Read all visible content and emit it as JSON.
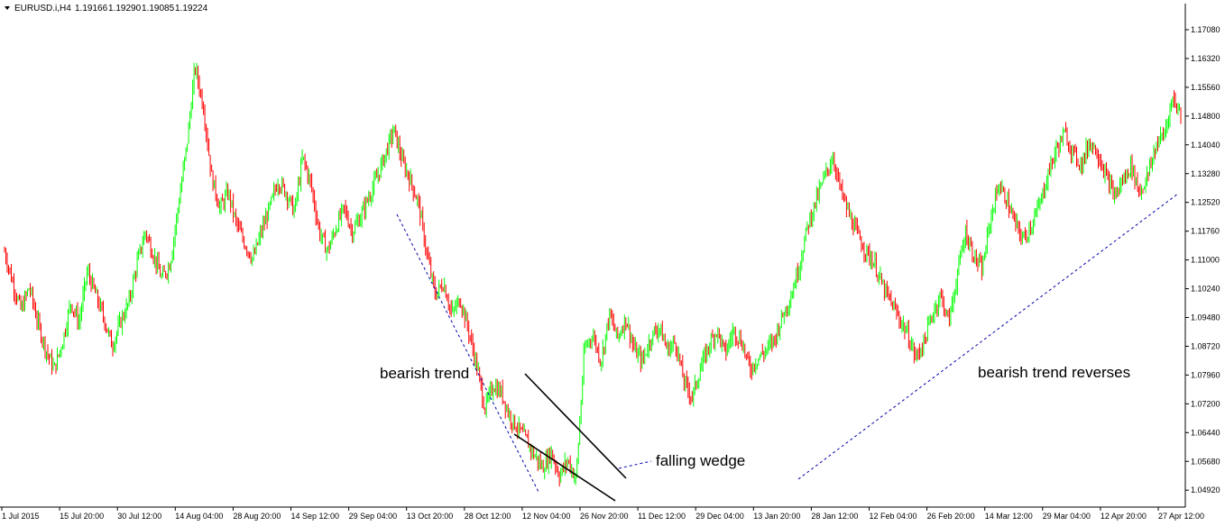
{
  "header": {
    "symbol": "EURUSD.i,H4",
    "open": "1.19166",
    "high": "1.19290",
    "low": "1.19085",
    "close": "1.19224"
  },
  "chart_data": {
    "type": "candlestick",
    "y_tick_labels": [
      "1.17080",
      "1.16320",
      "1.15560",
      "1.14800",
      "1.14040",
      "1.13280",
      "1.12520",
      "1.11760",
      "1.11000",
      "1.10240",
      "1.09480",
      "1.08720",
      "1.07960",
      "1.07200",
      "1.06440",
      "1.05680",
      "1.04920"
    ],
    "x_tick_labels": [
      "1 Jul 2015",
      "15 Jul 20:00",
      "30 Jul 12:00",
      "14 Aug 04:00",
      "28 Aug 20:00",
      "14 Sep 12:00",
      "29 Sep 04:00",
      "13 Oct 20:00",
      "28 Oct 12:00",
      "12 Nov 04:00",
      "26 Nov 20:00",
      "11 Dec 12:00",
      "29 Dec 04:00",
      "13 Jan 20:00",
      "28 Jan 12:00",
      "12 Feb 04:00",
      "26 Feb 20:00",
      "14 Mar 12:00",
      "29 Mar 04:00",
      "12 Apr 20:00",
      "27 Apr 12:00"
    ],
    "ylim": [
      1.048,
      1.176
    ],
    "price_path": [
      [
        0,
        1.113
      ],
      [
        1,
        1.105
      ],
      [
        2,
        1.098
      ],
      [
        3,
        1.104
      ],
      [
        4,
        1.095
      ],
      [
        5,
        1.088
      ],
      [
        6,
        1.083
      ],
      [
        7,
        1.09
      ],
      [
        8,
        1.1
      ],
      [
        9,
        1.095
      ],
      [
        10,
        1.108
      ],
      [
        11,
        1.102
      ],
      [
        12,
        1.096
      ],
      [
        13,
        1.089
      ],
      [
        14,
        1.095
      ],
      [
        15,
        1.1
      ],
      [
        16,
        1.11
      ],
      [
        17,
        1.118
      ],
      [
        18,
        1.112
      ],
      [
        19,
        1.106
      ],
      [
        20,
        1.11
      ],
      [
        21,
        1.125
      ],
      [
        22,
        1.14
      ],
      [
        23,
        1.16
      ],
      [
        24,
        1.15
      ],
      [
        25,
        1.132
      ],
      [
        26,
        1.124
      ],
      [
        27,
        1.128
      ],
      [
        28,
        1.12
      ],
      [
        29,
        1.115
      ],
      [
        30,
        1.111
      ],
      [
        31,
        1.118
      ],
      [
        32,
        1.124
      ],
      [
        33,
        1.131
      ],
      [
        34,
        1.128
      ],
      [
        35,
        1.123
      ],
      [
        36,
        1.137
      ],
      [
        37,
        1.13
      ],
      [
        38,
        1.118
      ],
      [
        39,
        1.113
      ],
      [
        40,
        1.119
      ],
      [
        41,
        1.124
      ],
      [
        42,
        1.118
      ],
      [
        43,
        1.122
      ],
      [
        44,
        1.127
      ],
      [
        45,
        1.132
      ],
      [
        46,
        1.138
      ],
      [
        47,
        1.144
      ],
      [
        48,
        1.136
      ],
      [
        49,
        1.131
      ],
      [
        50,
        1.125
      ],
      [
        51,
        1.112
      ],
      [
        52,
        1.102
      ],
      [
        53,
        1.105
      ],
      [
        54,
        1.097
      ],
      [
        55,
        1.101
      ],
      [
        56,
        1.093
      ],
      [
        57,
        1.084
      ],
      [
        58,
        1.073
      ],
      [
        59,
        1.079
      ],
      [
        60,
        1.077
      ],
      [
        61,
        1.071
      ],
      [
        62,
        1.068
      ],
      [
        63,
        1.065
      ],
      [
        64,
        1.061
      ],
      [
        65,
        1.058
      ],
      [
        66,
        1.062
      ],
      [
        67,
        1.056
      ],
      [
        68,
        1.06
      ],
      [
        69,
        1.055
      ],
      [
        70,
        1.088
      ],
      [
        71,
        1.092
      ],
      [
        72,
        1.085
      ],
      [
        73,
        1.097
      ],
      [
        74,
        1.091
      ],
      [
        75,
        1.096
      ],
      [
        76,
        1.088
      ],
      [
        77,
        1.085
      ],
      [
        78,
        1.091
      ],
      [
        79,
        1.094
      ],
      [
        80,
        1.088
      ],
      [
        81,
        1.09
      ],
      [
        82,
        1.08
      ],
      [
        83,
        1.076
      ],
      [
        84,
        1.083
      ],
      [
        85,
        1.089
      ],
      [
        86,
        1.093
      ],
      [
        87,
        1.087
      ],
      [
        88,
        1.093
      ],
      [
        89,
        1.09
      ],
      [
        90,
        1.083
      ],
      [
        91,
        1.086
      ],
      [
        92,
        1.088
      ],
      [
        93,
        1.091
      ],
      [
        94,
        1.097
      ],
      [
        95,
        1.102
      ],
      [
        96,
        1.11
      ],
      [
        97,
        1.12
      ],
      [
        98,
        1.126
      ],
      [
        99,
        1.132
      ],
      [
        100,
        1.137
      ],
      [
        101,
        1.128
      ],
      [
        102,
        1.122
      ],
      [
        103,
        1.117
      ],
      [
        104,
        1.113
      ],
      [
        105,
        1.11
      ],
      [
        106,
        1.104
      ],
      [
        107,
        1.1
      ],
      [
        108,
        1.096
      ],
      [
        109,
        1.092
      ],
      [
        110,
        1.086
      ],
      [
        111,
        1.09
      ],
      [
        112,
        1.097
      ],
      [
        113,
        1.102
      ],
      [
        114,
        1.095
      ],
      [
        115,
        1.107
      ],
      [
        116,
        1.118
      ],
      [
        117,
        1.112
      ],
      [
        118,
        1.108
      ],
      [
        119,
        1.121
      ],
      [
        120,
        1.13
      ],
      [
        121,
        1.126
      ],
      [
        122,
        1.12
      ],
      [
        123,
        1.116
      ],
      [
        124,
        1.12
      ],
      [
        125,
        1.125
      ],
      [
        126,
        1.133
      ],
      [
        127,
        1.139
      ],
      [
        128,
        1.143
      ],
      [
        129,
        1.138
      ],
      [
        130,
        1.135
      ],
      [
        131,
        1.141
      ],
      [
        132,
        1.138
      ],
      [
        133,
        1.132
      ],
      [
        134,
        1.127
      ],
      [
        135,
        1.131
      ],
      [
        136,
        1.135
      ],
      [
        137,
        1.128
      ],
      [
        138,
        1.132
      ],
      [
        139,
        1.14
      ],
      [
        140,
        1.143
      ],
      [
        141,
        1.152
      ],
      [
        142,
        1.148
      ]
    ],
    "colors": {
      "bull": "#00ff00",
      "bear": "#ff0000",
      "trendline": "#0000aa",
      "wedge": "#000000",
      "axis": "#000000"
    }
  },
  "annotations": {
    "bearish_trend": "bearish trend",
    "falling_wedge": "falling wedge",
    "bearish_trend_reverses": "bearish trend reverses"
  }
}
